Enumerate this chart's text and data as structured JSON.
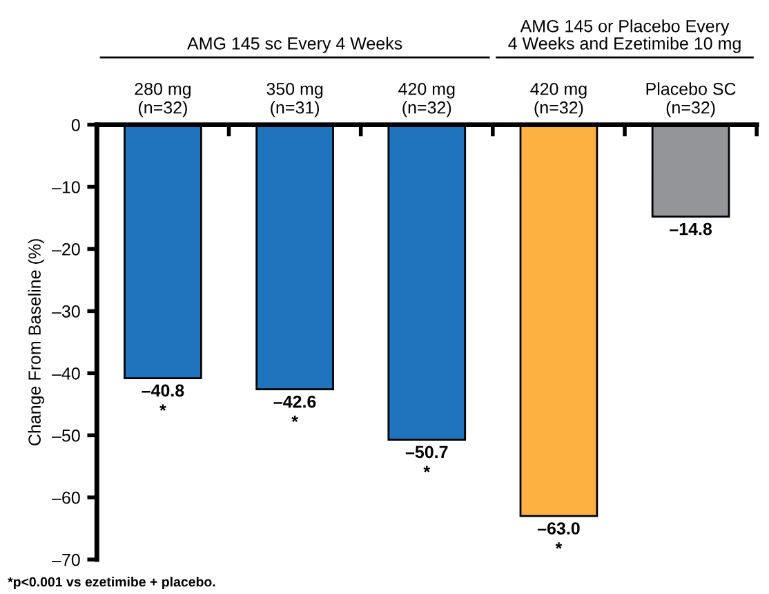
{
  "chart_data": {
    "type": "bar",
    "ylabel": "Change From Baseline (%)",
    "categories": [
      "280 mg\n(n=32)",
      "350 mg\n(n=31)",
      "420 mg\n(n=32)",
      "420 mg\n(n=32)",
      "Placebo SC\n(n=32)"
    ],
    "values": [
      -40.8,
      -42.6,
      -50.7,
      -63.0,
      -14.8
    ],
    "colors": [
      "#1f74bd",
      "#1f74bd",
      "#1f74bd",
      "#fbb040",
      "#939598"
    ],
    "value_labels": [
      "–40.8\n*",
      "–42.6\n*",
      "–50.7\n*",
      "–63.0\n*",
      "–14.8"
    ],
    "ylim": [
      -70,
      0
    ],
    "yticks": [
      0,
      {
        "value": -10,
        "label": "–10"
      },
      {
        "value": -20,
        "label": "–20"
      },
      {
        "value": -30,
        "label": "–30"
      },
      {
        "value": -40,
        "label": "–40"
      },
      {
        "value": -50,
        "label": "–50"
      },
      {
        "value": -60,
        "label": "–60"
      },
      {
        "value": -70,
        "label": "–70"
      }
    ],
    "grid": false,
    "annotations": [
      "AMG 145 sc Every 4 Weeks",
      "AMG 145 or Placebo Every\n4 Weeks and Ezetimibe 10 mg",
      "*p<0.001 vs ezetimibe + placebo."
    ]
  }
}
